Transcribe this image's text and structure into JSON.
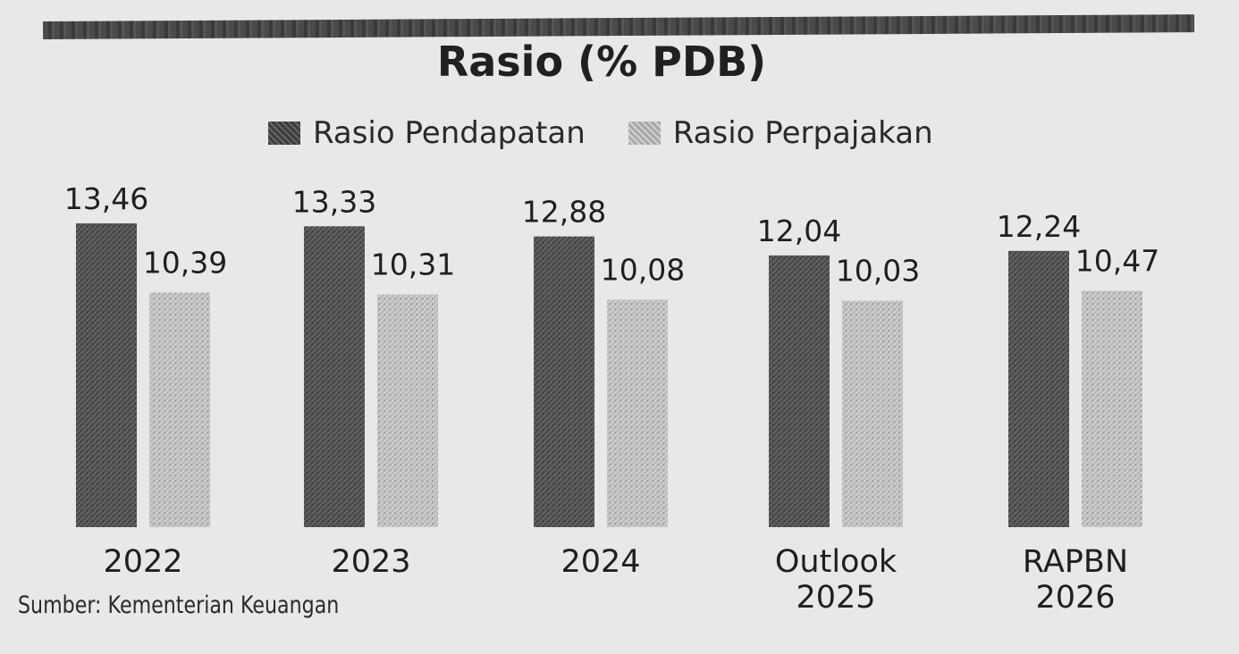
{
  "chart_data": {
    "type": "bar",
    "title": "Rasio (% PDB)",
    "categories": [
      [
        "2022"
      ],
      [
        "2023"
      ],
      [
        "2024"
      ],
      [
        "Outlook",
        "2025"
      ],
      [
        "RAPBN",
        "2026"
      ]
    ],
    "series": [
      {
        "name": "Rasio Pendapatan",
        "values": [
          13.46,
          13.33,
          12.88,
          12.04,
          12.24
        ],
        "labels": [
          "13,46",
          "13,33",
          "12,88",
          "12,04",
          "12,24"
        ],
        "color": "#4f4f4f"
      },
      {
        "name": "Rasio Perpajakan",
        "values": [
          10.39,
          10.31,
          10.08,
          10.03,
          10.47
        ],
        "labels": [
          "10,39",
          "10,31",
          "10,08",
          "10,03",
          "10,47"
        ],
        "color": "#bdbdbd"
      }
    ],
    "legend": "top-center",
    "grid": false
  },
  "source": "Sumber: Kementerian Keuangan"
}
